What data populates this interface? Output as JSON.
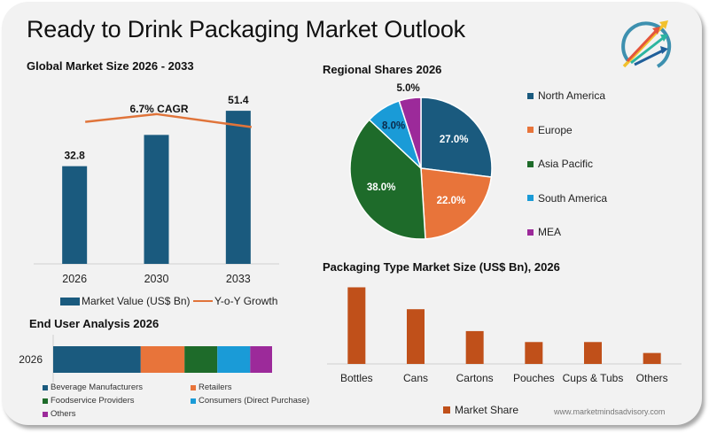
{
  "title": "Ready to Drink Packaging Market Outlook",
  "logo": {
    "icon": "growth-arrows-logo-icon"
  },
  "watermark": "www.marketmindsadvisory.com",
  "colors": {
    "market_value": "#1a5a7e",
    "yoy_growth": "#e0743a",
    "north_america": "#1a5a7e",
    "europe": "#e8743a",
    "asia_pacific": "#1e6b2a",
    "south_america": "#1a9bd7",
    "mea": "#9c2a9a",
    "packaging_bar": "#c0501a"
  },
  "chart_data": [
    {
      "id": "global-market-size",
      "type": "bar",
      "title": "Global Market Size 2026 - 2033",
      "categories": [
        "2026",
        "2030",
        "2033"
      ],
      "series": [
        {
          "name": "Market Value (US$ Bn)",
          "type": "bar",
          "values": [
            32.8,
            43.3,
            51.4
          ],
          "labels": [
            "32.8",
            "",
            "51.4"
          ]
        },
        {
          "name": "Y-o-Y Growth",
          "type": "line",
          "values": [
            6.6,
            6.9,
            6.4
          ]
        }
      ],
      "annotation": "6.7% CAGR",
      "ylim": [
        0,
        55
      ],
      "xlabel": "",
      "ylabel": "",
      "legend": "bottom"
    },
    {
      "id": "regional-shares",
      "type": "pie",
      "title": "Regional Shares 2026",
      "slices": [
        {
          "label": "North America",
          "value": 27.0,
          "text": "27.0%"
        },
        {
          "label": "Europe",
          "value": 22.0,
          "text": "22.0%"
        },
        {
          "label": "Asia Pacific",
          "value": 38.0,
          "text": "38.0%"
        },
        {
          "label": "South America",
          "value": 8.0,
          "text": "8.0%"
        },
        {
          "label": "MEA",
          "value": 5.0,
          "text": "5.0%"
        }
      ],
      "legend": "right"
    },
    {
      "id": "end-user-analysis",
      "type": "bar",
      "orientation": "horizontal-stacked",
      "title": "End User Analysis 2026",
      "categories": [
        "2026"
      ],
      "series": [
        {
          "name": "Beverage Manufacturers",
          "values": [
            40
          ]
        },
        {
          "name": "Retailers",
          "values": [
            20
          ]
        },
        {
          "name": "Foodservice Providers",
          "values": [
            15
          ]
        },
        {
          "name": "Consumers (Direct Purchase)",
          "values": [
            15
          ]
        },
        {
          "name": "Others",
          "values": [
            10
          ]
        }
      ],
      "legend": "bottom"
    },
    {
      "id": "packaging-type",
      "type": "bar",
      "title": "Packaging Type Market Size (US$ Bn), 2026",
      "categories": [
        "Bottles",
        "Cans",
        "Cartons",
        "Pouches",
        "Cups & Tubs",
        "Others"
      ],
      "series": [
        {
          "name": "Market Share",
          "values": [
            35,
            25,
            15,
            10,
            10,
            5
          ]
        }
      ],
      "ylim": [
        0,
        36
      ],
      "legend": "bottom"
    }
  ]
}
